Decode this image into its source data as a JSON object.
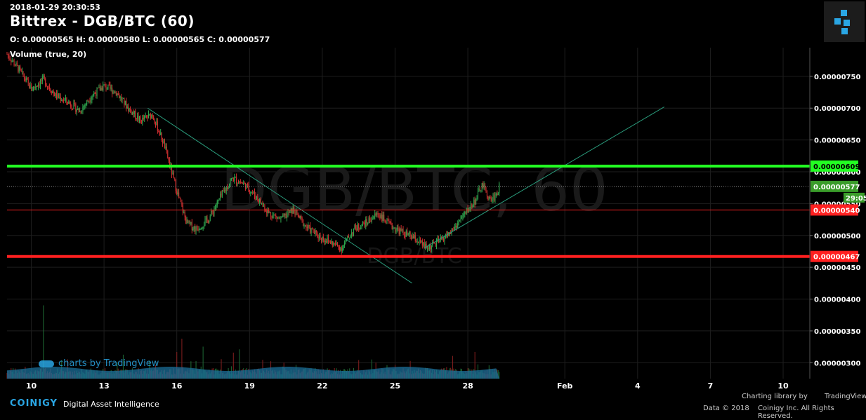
{
  "header": {
    "timestamp": "2018-01-29 20:30:53",
    "title": "Bittrex - DGB/BTC (60)",
    "ohlc": "O: 0.00000565 H: 0.00000580 L: 0.00000565 C: 0.00000577",
    "volume_label": "Volume (true, 20)"
  },
  "watermark": {
    "big": "DGB/BTC, 60",
    "small": "DGB/BTC",
    "tv": "charts by TradingView"
  },
  "footer": {
    "brand": "COINIGY",
    "tagline": "Digital Asset Intelligence",
    "charting": "Charting library by",
    "tradingview": "TradingView",
    "data_prefix": "Data © 2018",
    "copyright": "Coinigy Inc. All Rights Reserved."
  },
  "chart_data": {
    "type": "candlestick",
    "pair": "DGB/BTC",
    "exchange": "Bittrex",
    "interval": "60",
    "x_ticks": [
      "10",
      "13",
      "16",
      "19",
      "22",
      "25",
      "28",
      "Feb",
      "4",
      "7",
      "10"
    ],
    "x_tick_days": [
      10,
      13,
      16,
      19,
      22,
      25,
      28,
      32,
      35,
      38,
      41
    ],
    "y_ticks": [
      "0.00000300",
      "0.00000350",
      "0.00000400",
      "0.00000450",
      "0.00000500",
      "0.00000550",
      "0.00000600",
      "0.00000650",
      "0.00000700",
      "0.00000750"
    ],
    "ylim": [
      2.75e-06,
      7.95e-06
    ],
    "price_path": [
      [
        9.0,
        7.85e-06
      ],
      [
        9.5,
        7.6e-06
      ],
      [
        10.0,
        7.3e-06
      ],
      [
        10.5,
        7.45e-06
      ],
      [
        11.0,
        7.2e-06
      ],
      [
        11.5,
        7.1e-06
      ],
      [
        12.0,
        6.95e-06
      ],
      [
        12.5,
        7.2e-06
      ],
      [
        13.0,
        7.35e-06
      ],
      [
        13.5,
        7.25e-06
      ],
      [
        14.0,
        7e-06
      ],
      [
        14.5,
        6.8e-06
      ],
      [
        15.0,
        6.9e-06
      ],
      [
        15.5,
        6.4e-06
      ],
      [
        16.0,
        5.7e-06
      ],
      [
        16.4,
        5.2e-06
      ],
      [
        16.8,
        5.1e-06
      ],
      [
        17.3,
        5.25e-06
      ],
      [
        17.8,
        5.6e-06
      ],
      [
        18.3,
        5.9e-06
      ],
      [
        18.8,
        5.8e-06
      ],
      [
        19.3,
        5.6e-06
      ],
      [
        19.8,
        5.35e-06
      ],
      [
        20.3,
        5.25e-06
      ],
      [
        20.8,
        5.4e-06
      ],
      [
        21.3,
        5.15e-06
      ],
      [
        21.8,
        5e-06
      ],
      [
        22.3,
        4.9e-06
      ],
      [
        22.8,
        4.8e-06
      ],
      [
        23.3,
        5.1e-06
      ],
      [
        23.8,
        5.2e-06
      ],
      [
        24.3,
        5.35e-06
      ],
      [
        24.8,
        5.15e-06
      ],
      [
        25.3,
        5.05e-06
      ],
      [
        25.8,
        4.95e-06
      ],
      [
        26.3,
        4.8e-06
      ],
      [
        26.8,
        4.9e-06
      ],
      [
        27.3,
        5.05e-06
      ],
      [
        27.8,
        5.3e-06
      ],
      [
        28.3,
        5.55e-06
      ],
      [
        28.6,
        5.8e-06
      ],
      [
        28.9,
        5.55e-06
      ],
      [
        29.2,
        5.65e-06
      ],
      [
        29.3,
        5.77e-06
      ]
    ],
    "volume_spikes": [
      [
        10.5,
        0.55
      ],
      [
        16.0,
        0.2
      ],
      [
        16.2,
        0.3
      ],
      [
        17.1,
        0.24
      ],
      [
        18.6,
        0.22
      ],
      [
        24.2,
        0.12
      ],
      [
        28.3,
        0.2
      ]
    ],
    "horizontal_lines": [
      {
        "price": 6.09e-06,
        "label": "0.00000609",
        "color": "#22ff22"
      },
      {
        "price": 5.4e-06,
        "label": "0.00000540",
        "color": "#ff2020"
      },
      {
        "price": 4.67e-06,
        "label": "0.00000467",
        "color": "#ff2020"
      }
    ],
    "trendlines": [
      {
        "from": [
          14.8,
          7e-06
        ],
        "to": [
          25.7,
          4.25e-06
        ]
      },
      {
        "from": [
          26.2,
          4.8e-06
        ],
        "to": [
          36.1,
          7.02e-06
        ]
      }
    ],
    "last_price": {
      "price": 5.77e-06,
      "label": "0.00000577",
      "countdown": "29:05",
      "color": "#3a9c2a"
    }
  }
}
